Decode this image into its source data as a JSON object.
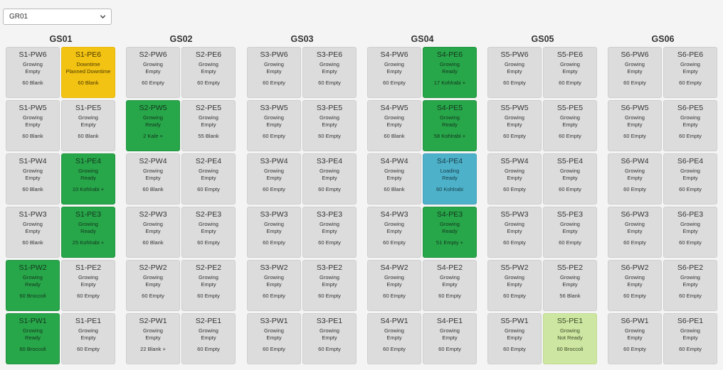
{
  "selector": {
    "value": "GR01"
  },
  "colors": {
    "default": "#dcdcdc",
    "green": "#28a64a",
    "yellow": "#f3c313",
    "blue": "#4db1c9",
    "lime": "#cde6a1"
  },
  "groups": [
    {
      "title": "GS01",
      "cells": [
        {
          "name": "S1-PW6",
          "status": "Growing",
          "state": "Empty",
          "contents": "60 Blank",
          "color": "default"
        },
        {
          "name": "S1-PE6",
          "status": "Downtime",
          "state": "Planned Downtime",
          "contents": "60 Blank",
          "color": "yellow"
        },
        {
          "name": "S1-PW5",
          "status": "Growing",
          "state": "Empty",
          "contents": "60 Blank",
          "color": "default"
        },
        {
          "name": "S1-PE5",
          "status": "Growing",
          "state": "Empty",
          "contents": "60 Blank",
          "color": "default"
        },
        {
          "name": "S1-PW4",
          "status": "Growing",
          "state": "Empty",
          "contents": "60 Blank",
          "color": "default"
        },
        {
          "name": "S1-PE4",
          "status": "Growing",
          "state": "Ready",
          "contents": "10 Kohlrabi +",
          "color": "green"
        },
        {
          "name": "S1-PW3",
          "status": "Growing",
          "state": "Empty",
          "contents": "60 Blank",
          "color": "default"
        },
        {
          "name": "S1-PE3",
          "status": "Growing",
          "state": "Ready",
          "contents": "25 Kohlrabi +",
          "color": "green"
        },
        {
          "name": "S1-PW2",
          "status": "Growing",
          "state": "Ready",
          "contents": "60 Broccoli",
          "color": "green"
        },
        {
          "name": "S1-PE2",
          "status": "Growing",
          "state": "Empty",
          "contents": "60 Empty",
          "color": "default"
        },
        {
          "name": "S1-PW1",
          "status": "Growing",
          "state": "Ready",
          "contents": "60 Broccoli",
          "color": "green"
        },
        {
          "name": "S1-PE1",
          "status": "Growing",
          "state": "Empty",
          "contents": "60 Empty",
          "color": "default"
        }
      ]
    },
    {
      "title": "GS02",
      "cells": [
        {
          "name": "S2-PW6",
          "status": "Growing",
          "state": "Empty",
          "contents": "60 Empty",
          "color": "default"
        },
        {
          "name": "S2-PE6",
          "status": "Growing",
          "state": "Empty",
          "contents": "60 Empty",
          "color": "default"
        },
        {
          "name": "S2-PW5",
          "status": "Growing",
          "state": "Ready",
          "contents": "2 Kale +",
          "color": "green"
        },
        {
          "name": "S2-PE5",
          "status": "Growing",
          "state": "Empty",
          "contents": "55 Blank",
          "color": "default"
        },
        {
          "name": "S2-PW4",
          "status": "Growing",
          "state": "Empty",
          "contents": "60 Blank",
          "color": "default"
        },
        {
          "name": "S2-PE4",
          "status": "Growing",
          "state": "Empty",
          "contents": "60 Empty",
          "color": "default"
        },
        {
          "name": "S2-PW3",
          "status": "Growing",
          "state": "Empty",
          "contents": "60 Blank",
          "color": "default"
        },
        {
          "name": "S2-PE3",
          "status": "Growing",
          "state": "Empty",
          "contents": "60 Empty",
          "color": "default"
        },
        {
          "name": "S2-PW2",
          "status": "Growing",
          "state": "Empty",
          "contents": "60 Empty",
          "color": "default"
        },
        {
          "name": "S2-PE2",
          "status": "Growing",
          "state": "Empty",
          "contents": "60 Empty",
          "color": "default"
        },
        {
          "name": "S2-PW1",
          "status": "Growing",
          "state": "Empty",
          "contents": "22 Blank +",
          "color": "default"
        },
        {
          "name": "S2-PE1",
          "status": "Growing",
          "state": "Empty",
          "contents": "60 Empty",
          "color": "default"
        }
      ]
    },
    {
      "title": "GS03",
      "cells": [
        {
          "name": "S3-PW6",
          "status": "Growing",
          "state": "Empty",
          "contents": "60 Empty",
          "color": "default"
        },
        {
          "name": "S3-PE6",
          "status": "Growing",
          "state": "Empty",
          "contents": "60 Empty",
          "color": "default"
        },
        {
          "name": "S3-PW5",
          "status": "Growing",
          "state": "Empty",
          "contents": "60 Empty",
          "color": "default"
        },
        {
          "name": "S3-PE5",
          "status": "Growing",
          "state": "Empty",
          "contents": "60 Empty",
          "color": "default"
        },
        {
          "name": "S3-PW4",
          "status": "Growing",
          "state": "Empty",
          "contents": "60 Empty",
          "color": "default"
        },
        {
          "name": "S3-PE4",
          "status": "Growing",
          "state": "Empty",
          "contents": "60 Empty",
          "color": "default"
        },
        {
          "name": "S3-PW3",
          "status": "Growing",
          "state": "Empty",
          "contents": "60 Empty",
          "color": "default"
        },
        {
          "name": "S3-PE3",
          "status": "Growing",
          "state": "Empty",
          "contents": "60 Empty",
          "color": "default"
        },
        {
          "name": "S3-PW2",
          "status": "Growing",
          "state": "Empty",
          "contents": "60 Empty",
          "color": "default"
        },
        {
          "name": "S3-PE2",
          "status": "Growing",
          "state": "Empty",
          "contents": "60 Empty",
          "color": "default"
        },
        {
          "name": "S3-PW1",
          "status": "Growing",
          "state": "Empty",
          "contents": "60 Empty",
          "color": "default"
        },
        {
          "name": "S3-PE1",
          "status": "Growing",
          "state": "Empty",
          "contents": "60 Empty",
          "color": "default"
        }
      ]
    },
    {
      "title": "GS04",
      "cells": [
        {
          "name": "S4-PW6",
          "status": "Growing",
          "state": "Empty",
          "contents": "60 Empty",
          "color": "default"
        },
        {
          "name": "S4-PE6",
          "status": "Growing",
          "state": "Ready",
          "contents": "17 Kohlrabi +",
          "color": "green"
        },
        {
          "name": "S4-PW5",
          "status": "Growing",
          "state": "Empty",
          "contents": "60 Blank",
          "color": "default"
        },
        {
          "name": "S4-PE5",
          "status": "Growing",
          "state": "Ready",
          "contents": "58 Kohlrabi +",
          "color": "green"
        },
        {
          "name": "S4-PW4",
          "status": "Growing",
          "state": "Empty",
          "contents": "60 Blank",
          "color": "default"
        },
        {
          "name": "S4-PE4",
          "status": "Loading",
          "state": "Ready",
          "contents": "60 Kohlrabi",
          "color": "blue"
        },
        {
          "name": "S4-PW3",
          "status": "Growing",
          "state": "Empty",
          "contents": "60 Empty",
          "color": "default"
        },
        {
          "name": "S4-PE3",
          "status": "Growing",
          "state": "Ready",
          "contents": "51 Empty +",
          "color": "green"
        },
        {
          "name": "S4-PW2",
          "status": "Growing",
          "state": "Empty",
          "contents": "60 Empty",
          "color": "default"
        },
        {
          "name": "S4-PE2",
          "status": "Growing",
          "state": "Empty",
          "contents": "60 Empty",
          "color": "default"
        },
        {
          "name": "S4-PW1",
          "status": "Growing",
          "state": "Empty",
          "contents": "60 Empty",
          "color": "default"
        },
        {
          "name": "S4-PE1",
          "status": "Growing",
          "state": "Empty",
          "contents": "60 Empty",
          "color": "default"
        }
      ]
    },
    {
      "title": "GS05",
      "cells": [
        {
          "name": "S5-PW6",
          "status": "Growing",
          "state": "Empty",
          "contents": "60 Empty",
          "color": "default"
        },
        {
          "name": "S5-PE6",
          "status": "Growing",
          "state": "Empty",
          "contents": "60 Empty",
          "color": "default"
        },
        {
          "name": "S5-PW5",
          "status": "Growing",
          "state": "Empty",
          "contents": "60 Empty",
          "color": "default"
        },
        {
          "name": "S5-PE5",
          "status": "Growing",
          "state": "Empty",
          "contents": "60 Empty",
          "color": "default"
        },
        {
          "name": "S5-PW4",
          "status": "Growing",
          "state": "Empty",
          "contents": "60 Empty",
          "color": "default"
        },
        {
          "name": "S5-PE4",
          "status": "Growing",
          "state": "Empty",
          "contents": "60 Empty",
          "color": "default"
        },
        {
          "name": "S5-PW3",
          "status": "Growing",
          "state": "Empty",
          "contents": "60 Empty",
          "color": "default"
        },
        {
          "name": "S5-PE3",
          "status": "Growing",
          "state": "Empty",
          "contents": "60 Empty",
          "color": "default"
        },
        {
          "name": "S5-PW2",
          "status": "Growing",
          "state": "Empty",
          "contents": "60 Empty",
          "color": "default"
        },
        {
          "name": "S5-PE2",
          "status": "Growing",
          "state": "Empty",
          "contents": "56 Blank",
          "color": "default"
        },
        {
          "name": "S5-PW1",
          "status": "Growing",
          "state": "Empty",
          "contents": "60 Empty",
          "color": "default"
        },
        {
          "name": "S5-PE1",
          "status": "Growing",
          "state": "Not Ready",
          "contents": "60 Broccoli",
          "color": "lime"
        }
      ]
    },
    {
      "title": "GS06",
      "cells": [
        {
          "name": "S6-PW6",
          "status": "Growing",
          "state": "Empty",
          "contents": "60 Empty",
          "color": "default"
        },
        {
          "name": "S6-PE6",
          "status": "Growing",
          "state": "Empty",
          "contents": "60 Empty",
          "color": "default"
        },
        {
          "name": "S6-PW5",
          "status": "Growing",
          "state": "Empty",
          "contents": "60 Empty",
          "color": "default"
        },
        {
          "name": "S6-PE5",
          "status": "Growing",
          "state": "Empty",
          "contents": "60 Empty",
          "color": "default"
        },
        {
          "name": "S6-PW4",
          "status": "Growing",
          "state": "Empty",
          "contents": "60 Empty",
          "color": "default"
        },
        {
          "name": "S6-PE4",
          "status": "Growing",
          "state": "Empty",
          "contents": "60 Empty",
          "color": "default"
        },
        {
          "name": "S6-PW3",
          "status": "Growing",
          "state": "Empty",
          "contents": "60 Empty",
          "color": "default"
        },
        {
          "name": "S6-PE3",
          "status": "Growing",
          "state": "Empty",
          "contents": "60 Empty",
          "color": "default"
        },
        {
          "name": "S6-PW2",
          "status": "Growing",
          "state": "Empty",
          "contents": "60 Empty",
          "color": "default"
        },
        {
          "name": "S6-PE2",
          "status": "Growing",
          "state": "Empty",
          "contents": "60 Empty",
          "color": "default"
        },
        {
          "name": "S6-PW1",
          "status": "Growing",
          "state": "Empty",
          "contents": "60 Empty",
          "color": "default"
        },
        {
          "name": "S6-PE1",
          "status": "Growing",
          "state": "Empty",
          "contents": "60 Empty",
          "color": "default"
        }
      ]
    }
  ]
}
